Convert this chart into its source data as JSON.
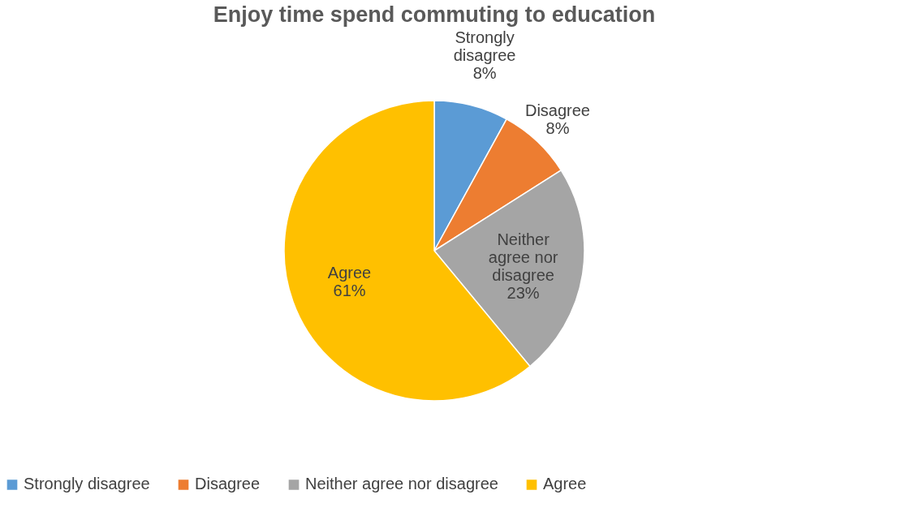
{
  "chart_data": {
    "type": "pie",
    "title": "Enjoy time spend commuting to education",
    "categories": [
      "Strongly disagree",
      "Disagree",
      "Neither agree nor disagree",
      "Agree"
    ],
    "values": [
      8,
      8,
      23,
      61
    ],
    "colors": [
      "#5b9bd5",
      "#ed7d31",
      "#a5a5a5",
      "#ffc000"
    ],
    "value_labels": [
      "8%",
      "8%",
      "23%",
      "61%"
    ],
    "legend": "bottom"
  }
}
